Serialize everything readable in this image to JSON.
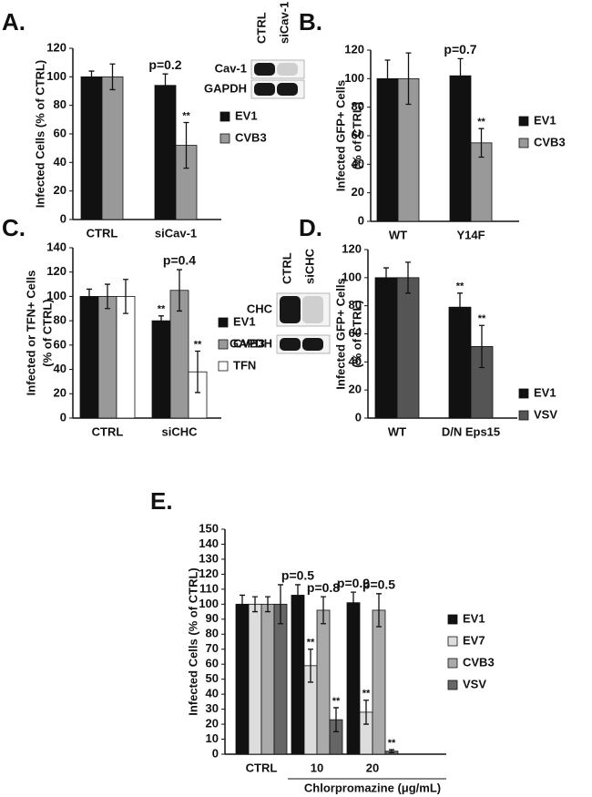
{
  "chart_data": [
    {
      "type": "bar",
      "panel": "A.",
      "ylabel": [
        "Infected Cells (% of CTRL)"
      ],
      "categories": [
        "CTRL",
        "siCav-1"
      ],
      "series": [
        {
          "name": "EV1",
          "color": "#111111",
          "values": [
            100,
            94
          ],
          "errors": [
            4,
            8
          ],
          "notes": [
            null,
            "p=0.2"
          ]
        },
        {
          "name": "CVB3",
          "color": "#999999",
          "values": [
            100,
            52
          ],
          "errors": [
            9,
            16
          ],
          "notes": [
            null,
            "**"
          ]
        }
      ],
      "ylim": [
        0,
        120
      ],
      "yticks": [
        0,
        20,
        40,
        60,
        80,
        100,
        120
      ],
      "legend": "right",
      "blot": {
        "lanes": [
          "CTRL",
          "siCav-1"
        ],
        "bands": [
          "Cav-1",
          "GAPDH"
        ]
      }
    },
    {
      "type": "bar",
      "panel": "B.",
      "ylabel": [
        "Infected GFP+ Cells",
        "(% of CTRL)"
      ],
      "categories": [
        "WT",
        "Y14F"
      ],
      "series": [
        {
          "name": "EV1",
          "color": "#111111",
          "values": [
            100,
            102
          ],
          "errors": [
            13,
            12
          ],
          "notes": [
            null,
            "p=0.7"
          ]
        },
        {
          "name": "CVB3",
          "color": "#999999",
          "values": [
            100,
            55
          ],
          "errors": [
            18,
            10
          ],
          "notes": [
            null,
            "**"
          ]
        }
      ],
      "ylim": [
        0,
        120
      ],
      "yticks": [
        0,
        20,
        40,
        60,
        80,
        100,
        120
      ],
      "legend": "right"
    },
    {
      "type": "bar",
      "panel": "C.",
      "ylabel": [
        "Infected or TFN+ Cells",
        "(% of CTRL)"
      ],
      "categories": [
        "CTRL",
        "siCHC"
      ],
      "series": [
        {
          "name": "EV1",
          "color": "#111111",
          "values": [
            100,
            80
          ],
          "errors": [
            6,
            4
          ],
          "notes": [
            null,
            "**"
          ]
        },
        {
          "name": "CVB3",
          "color": "#999999",
          "values": [
            100,
            105
          ],
          "errors": [
            10,
            17
          ],
          "notes": [
            null,
            "p=0.4"
          ]
        },
        {
          "name": "TFN",
          "color": "#ffffff",
          "values": [
            100,
            38
          ],
          "errors": [
            14,
            17
          ],
          "notes": [
            null,
            "**"
          ]
        }
      ],
      "ylim": [
        0,
        140
      ],
      "yticks": [
        0,
        20,
        40,
        60,
        80,
        100,
        120,
        140
      ],
      "legend": "right",
      "blot": {
        "lanes": [
          "CTRL",
          "siCHC"
        ],
        "bands": [
          "CHC",
          "GAPDH"
        ]
      }
    },
    {
      "type": "bar",
      "panel": "D.",
      "ylabel": [
        "Infected GFP+ Cells",
        "(% of CTRL)"
      ],
      "categories": [
        "WT",
        "D/N Eps15"
      ],
      "series": [
        {
          "name": "EV1",
          "color": "#111111",
          "values": [
            100,
            79
          ],
          "errors": [
            7,
            10
          ],
          "notes": [
            null,
            "**"
          ]
        },
        {
          "name": "VSV",
          "color": "#555555",
          "values": [
            100,
            51
          ],
          "errors": [
            11,
            15
          ],
          "notes": [
            null,
            "**"
          ]
        }
      ],
      "ylim": [
        0,
        120
      ],
      "yticks": [
        0,
        20,
        40,
        60,
        80,
        100,
        120
      ],
      "legend": "right"
    },
    {
      "type": "bar",
      "panel": "E.",
      "ylabel": [
        "Infected Cells (% of CTRL)"
      ],
      "xlabel": "Chlorpromazine (μg/mL)",
      "categories": [
        "CTRL",
        "10",
        "20"
      ],
      "series": [
        {
          "name": "EV1",
          "color": "#111111",
          "values": [
            100,
            106,
            101
          ],
          "errors": [
            6,
            7,
            7
          ],
          "notes": [
            null,
            "p=0.5",
            "p=0.9"
          ]
        },
        {
          "name": "EV7",
          "color": "#dddddd",
          "values": [
            100,
            59,
            28
          ],
          "errors": [
            5,
            11,
            8
          ],
          "notes": [
            null,
            "**",
            "**"
          ]
        },
        {
          "name": "CVB3",
          "color": "#aaaaaa",
          "values": [
            100,
            96,
            96
          ],
          "errors": [
            5,
            9,
            11
          ],
          "notes": [
            null,
            "p=0.8",
            "p=0.5"
          ]
        },
        {
          "name": "VSV",
          "color": "#666666",
          "values": [
            100,
            23,
            2
          ],
          "errors": [
            13,
            8,
            1
          ],
          "notes": [
            null,
            "**",
            "**"
          ]
        }
      ],
      "ylim": [
        0,
        150
      ],
      "yticks": [
        0,
        10,
        20,
        30,
        40,
        50,
        60,
        70,
        80,
        90,
        100,
        110,
        120,
        130,
        140,
        150
      ],
      "legend": "right"
    }
  ]
}
